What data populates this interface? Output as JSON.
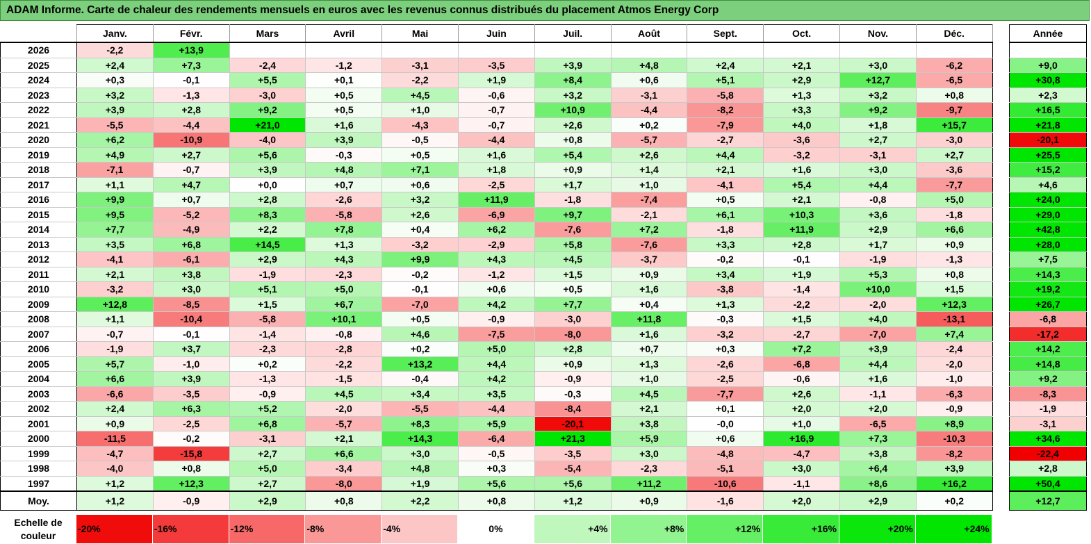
{
  "title": "ADAM Informe. Carte de chaleur des rendements mensuels en euros avec les revenus connus distribués du placement Atmos Energy Corp",
  "chart_data": {
    "type": "heatmap",
    "columns": [
      "Janv.",
      "Févr.",
      "Mars",
      "Avril",
      "Mai",
      "Juin",
      "Juil.",
      "Août",
      "Sept.",
      "Oct.",
      "Nov.",
      "Déc."
    ],
    "year_column": "Année",
    "avg_label": "Moy.",
    "rows": [
      {
        "year": "2026",
        "values": [
          "-2,2",
          "+13,9",
          "",
          "",
          "",
          "",
          "",
          "",
          "",
          "",
          "",
          ""
        ],
        "total": ""
      },
      {
        "year": "2025",
        "values": [
          "+2,4",
          "+7,3",
          "-2,4",
          "-1,2",
          "-3,1",
          "-3,5",
          "+3,9",
          "+4,8",
          "+2,4",
          "+2,1",
          "+3,0",
          "-6,2"
        ],
        "total": "+9,0"
      },
      {
        "year": "2024",
        "values": [
          "+0,3",
          "-0,1",
          "+5,5",
          "+0,1",
          "-2,2",
          "+1,9",
          "+8,4",
          "+0,6",
          "+5,1",
          "+2,9",
          "+12,7",
          "-6,5"
        ],
        "total": "+30,8"
      },
      {
        "year": "2023",
        "values": [
          "+3,2",
          "-1,3",
          "-3,0",
          "+0,5",
          "+4,5",
          "-0,6",
          "+3,2",
          "-3,1",
          "-5,8",
          "+1,3",
          "+3,2",
          "+0,8"
        ],
        "total": "+2,3"
      },
      {
        "year": "2022",
        "values": [
          "+3,9",
          "+2,8",
          "+9,2",
          "+0,5",
          "+1,0",
          "-0,7",
          "+10,9",
          "-4,4",
          "-8,2",
          "+3,3",
          "+9,2",
          "-9,7"
        ],
        "total": "+16,5"
      },
      {
        "year": "2021",
        "values": [
          "-5,5",
          "-4,4",
          "+21,0",
          "+1,6",
          "-4,3",
          "-0,7",
          "+2,6",
          "+0,2",
          "-7,9",
          "+4,0",
          "+1,8",
          "+15,7"
        ],
        "total": "+21,8"
      },
      {
        "year": "2020",
        "values": [
          "+6,2",
          "-10,9",
          "-4,0",
          "+3,9",
          "-0,5",
          "-4,4",
          "+0,8",
          "-5,7",
          "-2,7",
          "-3,6",
          "+2,7",
          "-3,0"
        ],
        "total": "-20,1"
      },
      {
        "year": "2019",
        "values": [
          "+4,9",
          "+2,7",
          "+5,6",
          "-0,3",
          "+0,5",
          "+1,6",
          "+5,4",
          "+2,6",
          "+4,4",
          "-3,2",
          "-3,1",
          "+2,7"
        ],
        "total": "+25,5"
      },
      {
        "year": "2018",
        "values": [
          "-7,1",
          "-0,7",
          "+3,9",
          "+4,8",
          "+7,1",
          "+1,8",
          "+0,9",
          "+1,4",
          "+2,1",
          "+1,6",
          "+3,0",
          "-3,6"
        ],
        "total": "+15,2"
      },
      {
        "year": "2017",
        "values": [
          "+1,1",
          "+4,7",
          "+0,0",
          "+0,7",
          "+0,6",
          "-2,5",
          "+1,7",
          "+1,0",
          "-4,1",
          "+5,4",
          "+4,4",
          "-7,7"
        ],
        "total": "+4,6"
      },
      {
        "year": "2016",
        "values": [
          "+9,9",
          "+0,7",
          "+2,8",
          "-2,6",
          "+3,2",
          "+11,9",
          "-1,8",
          "-7,4",
          "+0,5",
          "+2,1",
          "-0,8",
          "+5,0"
        ],
        "total": "+24,0"
      },
      {
        "year": "2015",
        "values": [
          "+9,5",
          "-5,2",
          "+8,3",
          "-5,8",
          "+2,6",
          "-6,9",
          "+9,7",
          "-2,1",
          "+6,1",
          "+10,3",
          "+3,6",
          "-1,8"
        ],
        "total": "+29,0"
      },
      {
        "year": "2014",
        "values": [
          "+7,7",
          "-4,9",
          "+2,2",
          "+7,8",
          "+0,4",
          "+6,2",
          "-7,6",
          "+7,2",
          "-1,8",
          "+11,9",
          "+2,9",
          "+6,6"
        ],
        "total": "+42,8"
      },
      {
        "year": "2013",
        "values": [
          "+3,5",
          "+6,8",
          "+14,5",
          "+1,3",
          "-3,2",
          "-2,9",
          "+5,8",
          "-7,6",
          "+3,3",
          "+2,8",
          "+1,7",
          "+0,9"
        ],
        "total": "+28,0"
      },
      {
        "year": "2012",
        "values": [
          "-4,1",
          "-6,1",
          "+2,9",
          "+4,3",
          "+9,9",
          "+4,3",
          "+4,5",
          "-3,7",
          "-0,2",
          "-0,1",
          "-1,9",
          "-1,3"
        ],
        "total": "+7,5"
      },
      {
        "year": "2011",
        "values": [
          "+2,1",
          "+3,8",
          "-1,9",
          "-2,3",
          "-0,2",
          "-1,2",
          "+1,5",
          "+0,9",
          "+3,4",
          "+1,9",
          "+5,3",
          "+0,8"
        ],
        "total": "+14,3"
      },
      {
        "year": "2010",
        "values": [
          "-3,2",
          "+3,0",
          "+5,1",
          "+5,0",
          "-0,1",
          "+0,6",
          "+0,5",
          "+1,6",
          "-3,8",
          "-1,4",
          "+10,0",
          "+1,5"
        ],
        "total": "+19,2"
      },
      {
        "year": "2009",
        "values": [
          "+12,8",
          "-8,5",
          "+1,5",
          "+6,7",
          "-7,0",
          "+4,2",
          "+7,7",
          "+0,4",
          "+1,3",
          "-2,2",
          "-2,0",
          "+12,3"
        ],
        "total": "+26,7"
      },
      {
        "year": "2008",
        "values": [
          "+1,1",
          "-10,4",
          "-5,8",
          "+10,1",
          "+0,5",
          "-0,9",
          "-3,0",
          "+11,8",
          "-0,3",
          "+1,5",
          "+4,0",
          "-13,1"
        ],
        "total": "-6,8"
      },
      {
        "year": "2007",
        "values": [
          "-0,7",
          "-0,1",
          "-1,4",
          "-0,8",
          "+4,6",
          "-7,5",
          "-8,0",
          "+1,6",
          "-3,2",
          "-2,7",
          "-7,0",
          "+7,4"
        ],
        "total": "-17,2"
      },
      {
        "year": "2006",
        "values": [
          "-1,9",
          "+3,7",
          "-2,3",
          "-2,8",
          "+0,2",
          "+5,0",
          "+2,8",
          "+0,7",
          "+0,3",
          "+7,2",
          "+3,9",
          "-2,4"
        ],
        "total": "+14,2"
      },
      {
        "year": "2005",
        "values": [
          "+5,7",
          "-1,0",
          "+0,2",
          "-2,2",
          "+13,2",
          "+4,4",
          "+0,9",
          "+1,3",
          "-2,6",
          "-6,8",
          "+4,4",
          "-2,0"
        ],
        "total": "+14,8"
      },
      {
        "year": "2004",
        "values": [
          "+6,6",
          "+3,9",
          "-1,3",
          "-1,5",
          "-0,4",
          "+4,2",
          "-0,9",
          "+1,0",
          "-2,5",
          "-0,6",
          "+1,6",
          "-1,0"
        ],
        "total": "+9,2"
      },
      {
        "year": "2003",
        "values": [
          "-6,6",
          "-3,5",
          "-0,9",
          "+4,5",
          "+3,4",
          "+3,5",
          "-0,3",
          "+4,5",
          "-7,7",
          "+2,6",
          "-1,1",
          "-6,3"
        ],
        "total": "-8,3"
      },
      {
        "year": "2002",
        "values": [
          "+2,4",
          "+6,3",
          "+5,2",
          "-2,0",
          "-5,5",
          "-4,4",
          "-8,4",
          "+2,1",
          "+0,1",
          "+2,0",
          "+2,0",
          "-0,9"
        ],
        "total": "-1,9"
      },
      {
        "year": "2001",
        "values": [
          "+0,9",
          "-2,5",
          "+6,8",
          "-5,7",
          "+8,3",
          "+5,9",
          "-20,1",
          "+3,8",
          "-0,0",
          "+1,0",
          "-6,5",
          "+8,9"
        ],
        "total": "-3,1"
      },
      {
        "year": "2000",
        "values": [
          "-11,5",
          "-0,2",
          "-3,1",
          "+2,1",
          "+14,3",
          "-6,4",
          "+21,3",
          "+5,9",
          "+0,6",
          "+16,9",
          "+7,3",
          "-10,3"
        ],
        "total": "+34,6"
      },
      {
        "year": "1999",
        "values": [
          "-4,7",
          "-15,8",
          "+2,7",
          "+6,6",
          "+3,0",
          "-0,5",
          "-3,5",
          "+3,0",
          "-4,8",
          "-4,7",
          "+3,8",
          "-8,2"
        ],
        "total": "-22,4"
      },
      {
        "year": "1998",
        "values": [
          "-4,0",
          "+0,8",
          "+5,0",
          "-3,4",
          "+4,8",
          "+0,3",
          "-5,4",
          "-2,3",
          "-5,1",
          "+3,0",
          "+6,4",
          "+3,9"
        ],
        "total": "+2,8"
      },
      {
        "year": "1997",
        "values": [
          "+1,2",
          "+12,3",
          "+2,7",
          "-8,0",
          "+1,9",
          "+5,6",
          "+5,6",
          "+11,2",
          "-10,6",
          "-1,1",
          "+8,6",
          "+16,2"
        ],
        "total": "+50,4"
      }
    ],
    "averages": [
      "+1,2",
      "-0,9",
      "+2,9",
      "+0,8",
      "+2,2",
      "+0,8",
      "+1,2",
      "+0,9",
      "-1,6",
      "+2,0",
      "+2,9",
      "+0,2"
    ],
    "avg_total": "+12,7",
    "legend_label": "Echelle de couleur",
    "legend": [
      "-20%",
      "-16%",
      "-12%",
      "-8%",
      "-4%",
      "0%",
      "+4%",
      "+8%",
      "+12%",
      "+16%",
      "+20%",
      "+24%"
    ],
    "legend_values": [
      -20,
      -16,
      -12,
      -8,
      -4,
      0,
      4,
      8,
      12,
      16,
      20,
      24
    ]
  }
}
